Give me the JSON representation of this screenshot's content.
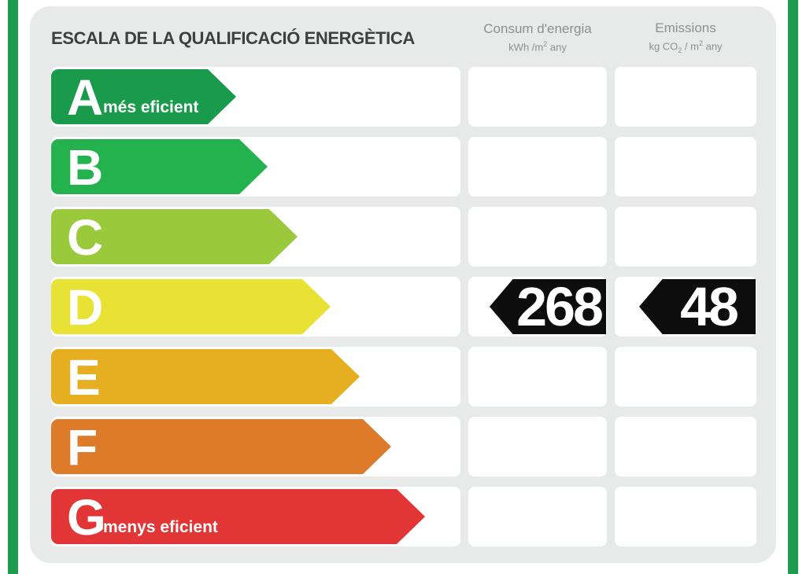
{
  "header": {
    "title": "ESCALA DE LA QUALIFICACIÓ ENERGÈTICA",
    "consumption_column": {
      "name": "Consum d'energia",
      "unit_main": "kWh /m",
      "unit_sup": "2",
      "unit_tail": " any"
    },
    "emissions_column": {
      "name": "Emissions",
      "unit_pre": "kg CO",
      "unit_sub": "2",
      "unit_mid": " / m",
      "unit_sup": "2",
      "unit_tail": " any"
    }
  },
  "scale": {
    "ratings": [
      {
        "letter": "A",
        "label": "més eficient",
        "color": "#1a9b4c",
        "arrow_length": 235
      },
      {
        "letter": "B",
        "label": "",
        "color": "#23b24d",
        "arrow_length": 275
      },
      {
        "letter": "C",
        "label": "",
        "color": "#9bc93c",
        "arrow_length": 313
      },
      {
        "letter": "D",
        "label": "",
        "color": "#e8e234",
        "arrow_length": 355
      },
      {
        "letter": "E",
        "label": "",
        "color": "#e6ae21",
        "arrow_length": 392
      },
      {
        "letter": "F",
        "label": "",
        "color": "#dd7b2b",
        "arrow_length": 432
      },
      {
        "letter": "G",
        "label": "menys eficient",
        "color": "#e23535",
        "arrow_length": 475
      }
    ]
  },
  "result": {
    "rated_class": "D",
    "consumption_value": "268",
    "emissions_value": "48"
  },
  "colors": {
    "border_stripe": "#1f9c50",
    "card_background": "#e8e9e9",
    "badge_background": "#0d0d0d",
    "title_text": "#3e4040",
    "header_text": "#8b9192"
  },
  "chart_data": {
    "type": "bar",
    "title": "ESCALA DE LA QUALIFICACIÓ ENERGÈTICA",
    "categories": [
      "A",
      "B",
      "C",
      "D",
      "E",
      "F",
      "G"
    ],
    "series": [
      {
        "name": "scale-arrow-relative-length-px",
        "values": [
          235,
          275,
          313,
          355,
          392,
          432,
          475
        ]
      }
    ],
    "bar_colors": [
      "#1a9b4c",
      "#23b24d",
      "#9bc93c",
      "#e8e234",
      "#e6ae21",
      "#dd7b2b",
      "#e23535"
    ],
    "rated_class": "D",
    "values": {
      "consum_energia_kWh_m2_any": 268,
      "emissions_kg_CO2_m2_any": 48
    },
    "annotations": [
      "A = més eficient",
      "G = menys eficient"
    ],
    "xlabel": "",
    "ylabel": "",
    "grid": false,
    "legend_position": "none"
  }
}
